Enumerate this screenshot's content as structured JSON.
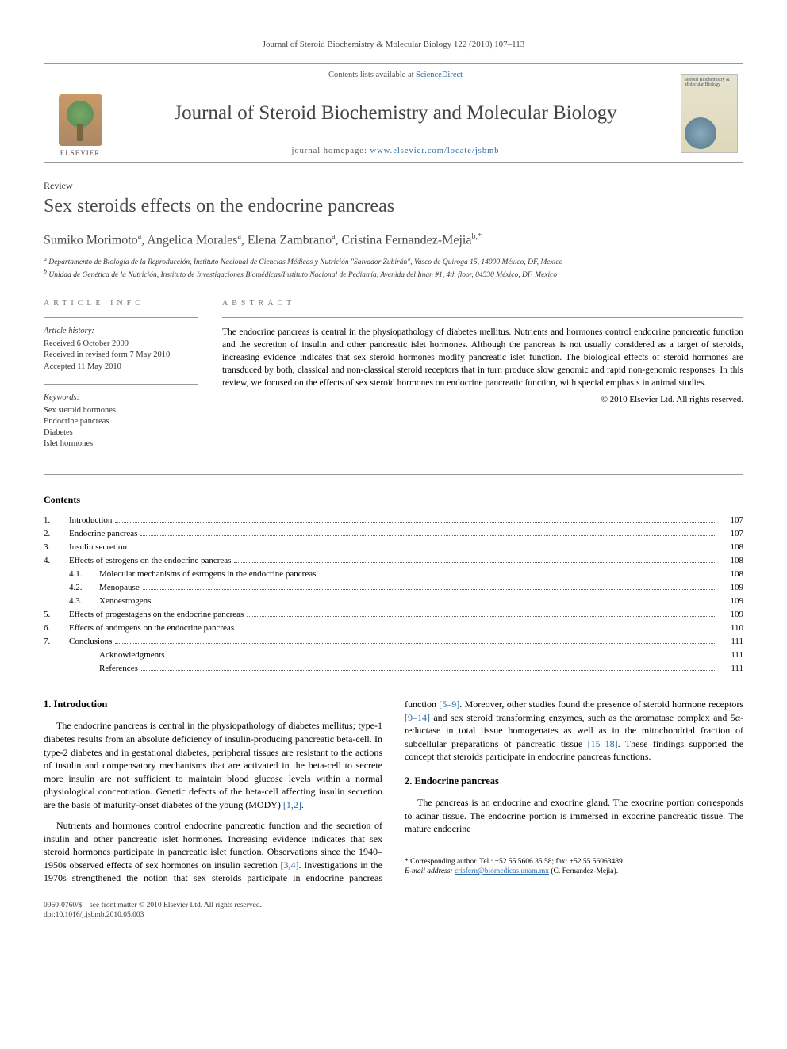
{
  "running_head": "Journal of Steroid Biochemistry & Molecular Biology 122 (2010) 107–113",
  "masthead": {
    "publisher_label": "ELSEVIER",
    "contents_prefix": "Contents lists available at ",
    "contents_link": "ScienceDirect",
    "journal_name": "Journal of Steroid Biochemistry and Molecular Biology",
    "homepage_prefix": "journal homepage: ",
    "homepage_url": "www.elsevier.com/locate/jsbmb",
    "cover_text": "Steroid Biochemistry & Molecular Biology"
  },
  "article": {
    "type": "Review",
    "title": "Sex steroids effects on the endocrine pancreas",
    "authors_html": "Sumiko Morimoto|a|, Angelica Morales|a|, Elena Zambrano|a|, Cristina Fernandez-Mejia|b,*",
    "affiliations": [
      "a Departamento de Biología de la Reproducción, Instituto Nacional de Ciencias Médicas y Nutrición \"Salvador Zubirán\", Vasco de Quiroga 15, 14000 México, DF, Mexico",
      "b Unidad de Genética de la Nutrición, Instituto de Investigaciones Biomédicas/Instituto Nacional de Pediatría, Avenida del Iman #1, 4th floor, 04530 México, DF, Mexico"
    ]
  },
  "info": {
    "heading": "ARTICLE INFO",
    "history_label": "Article history:",
    "history": [
      "Received 6 October 2009",
      "Received in revised form 7 May 2010",
      "Accepted 11 May 2010"
    ],
    "keywords_label": "Keywords:",
    "keywords": [
      "Sex steroid hormones",
      "Endocrine pancreas",
      "Diabetes",
      "Islet hormones"
    ]
  },
  "abstract": {
    "heading": "ABSTRACT",
    "text": "The endocrine pancreas is central in the physiopathology of diabetes mellitus. Nutrients and hormones control endocrine pancreatic function and the secretion of insulin and other pancreatic islet hormones. Although the pancreas is not usually considered as a target of steroids, increasing evidence indicates that sex steroid hormones modify pancreatic islet function. The biological effects of steroid hormones are transduced by both, classical and non-classical steroid receptors that in turn produce slow genomic and rapid non-genomic responses. In this review, we focused on the effects of sex steroid hormones on endocrine pancreatic function, with special emphasis in animal studies.",
    "copyright": "© 2010 Elsevier Ltd. All rights reserved."
  },
  "contents": {
    "title": "Contents",
    "items": [
      {
        "num": "1.",
        "label": "Introduction",
        "page": "107",
        "sub": false
      },
      {
        "num": "2.",
        "label": "Endocrine pancreas",
        "page": "107",
        "sub": false
      },
      {
        "num": "3.",
        "label": "Insulin secretion",
        "page": "108",
        "sub": false
      },
      {
        "num": "4.",
        "label": "Effects of estrogens on the endocrine pancreas",
        "page": "108",
        "sub": false
      },
      {
        "num": "4.1.",
        "label": "Molecular mechanisms of estrogens in the endocrine pancreas",
        "page": "108",
        "sub": true
      },
      {
        "num": "4.2.",
        "label": "Menopause",
        "page": "109",
        "sub": true
      },
      {
        "num": "4.3.",
        "label": "Xenoestrogens",
        "page": "109",
        "sub": true
      },
      {
        "num": "5.",
        "label": "Effects of progestagens on the endocrine pancreas",
        "page": "109",
        "sub": false
      },
      {
        "num": "6.",
        "label": "Effects of androgens on the endocrine pancreas",
        "page": "110",
        "sub": false
      },
      {
        "num": "7.",
        "label": "Conclusions",
        "page": "111",
        "sub": false
      },
      {
        "num": "",
        "label": "Acknowledgments",
        "page": "111",
        "sub": true
      },
      {
        "num": "",
        "label": "References",
        "page": "111",
        "sub": true
      }
    ]
  },
  "body": {
    "s1_title": "1. Introduction",
    "s1_p1": "The endocrine pancreas is central in the physiopathology of diabetes mellitus; type-1 diabetes results from an absolute deficiency of insulin-producing pancreatic beta-cell. In type-2 diabetes and in gestational diabetes, peripheral tissues are resistant to the actions of insulin and compensatory mechanisms that are activated in the beta-cell to secrete more insulin are not sufficient to maintain blood glucose levels within a normal physiological concentration. Genetic defects of the beta-cell affecting insulin secretion are the basis of maturity-onset diabetes of the young (MODY) ",
    "s1_p1_ref": "[1,2]",
    "s1_p2": "Nutrients and hormones control endocrine pancreatic function and the secretion of insulin and other pancreatic islet hormones. Increasing evidence indicates that sex steroid hormones participate in pancreatic islet function. Observations since the 1940–1950s observed effects of sex hormones on insulin secretion ",
    "s1_p2_ref1": "[3,4]",
    "s1_p2b": ". Investigations in the 1970s strengthened the notion that sex steroids participate in endocrine pancreas function ",
    "s1_p2_ref2": "[5–9]",
    "s1_p2c": ". Moreover, other studies found the presence of steroid hormone receptors ",
    "s1_p2_ref3": "[9–14]",
    "s1_p2d": " and sex steroid transforming enzymes, such as the aromatase complex and 5α-reductase in total tissue homogenates as well as in the mitochondrial fraction of subcellular preparations of pancreatic tissue ",
    "s1_p2_ref4": "[15–18]",
    "s1_p2e": ". These findings supported the concept that steroids participate in endocrine pancreas functions.",
    "s2_title": "2. Endocrine pancreas",
    "s2_p1": "The pancreas is an endocrine and exocrine gland. The exocrine portion corresponds to acinar tissue. The endocrine portion is immersed in exocrine pancreatic tissue. The mature endocrine"
  },
  "footnote": {
    "corr": "* Corresponding author. Tel.: +52 55 5606 35 58; fax: +52 55 56063489.",
    "email_label": "E-mail address:",
    "email": "crisfern@biomedicas.unam.mx",
    "email_suffix": "(C. Fernandez-Mejia)."
  },
  "footer": {
    "line1": "0960-0760/$ – see front matter © 2010 Elsevier Ltd. All rights reserved.",
    "line2": "doi:10.1016/j.jsbmb.2010.05.003"
  },
  "colors": {
    "link": "#2a6aa8",
    "rule": "#999999",
    "text_muted": "#555555"
  }
}
